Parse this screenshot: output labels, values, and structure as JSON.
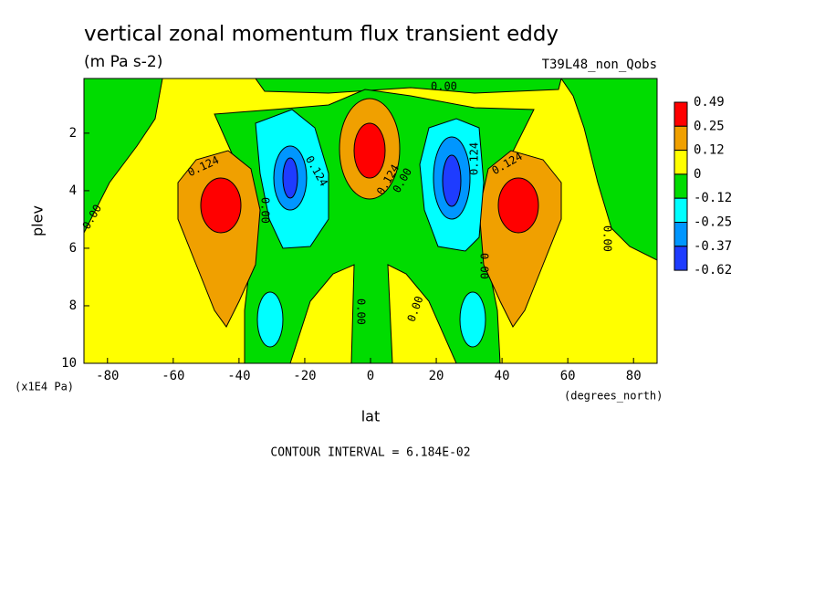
{
  "chart_data": {
    "type": "contour",
    "title": "vertical zonal momentum flux transient eddy",
    "subtitle": "(m Pa s-2)",
    "run_label": "T39L48_non_Qobs",
    "x_label": "lat",
    "x_units": "(degrees_north)",
    "y_label": "plev",
    "y_units": "(x1E4 Pa)",
    "xlim": [
      -87.16,
      87.16
    ],
    "xticks": [
      -80,
      -60,
      -40,
      -20,
      0,
      20,
      40,
      60,
      80
    ],
    "ylim": [
      10,
      0.1
    ],
    "yticks": [
      2,
      4,
      6,
      8,
      10
    ],
    "levels": [
      0.49,
      0.25,
      0.12,
      0,
      -0.12,
      -0.25,
      -0.37,
      -0.62
    ],
    "colors": [
      "#ff0000",
      "#f0a000",
      "#ffff00",
      "#00dc00",
      "#00ffff",
      "#0096ff",
      "#1e3cff"
    ],
    "contour_labels": [
      "0.00",
      "0.124",
      "0.124",
      "0.00",
      "0.124",
      "0.00",
      "0.124",
      "0.124",
      "0.00",
      "0.00",
      "0.00",
      "0.00",
      "0.00"
    ],
    "footer": "CONTOUR INTERVAL = 6.184E-02"
  }
}
